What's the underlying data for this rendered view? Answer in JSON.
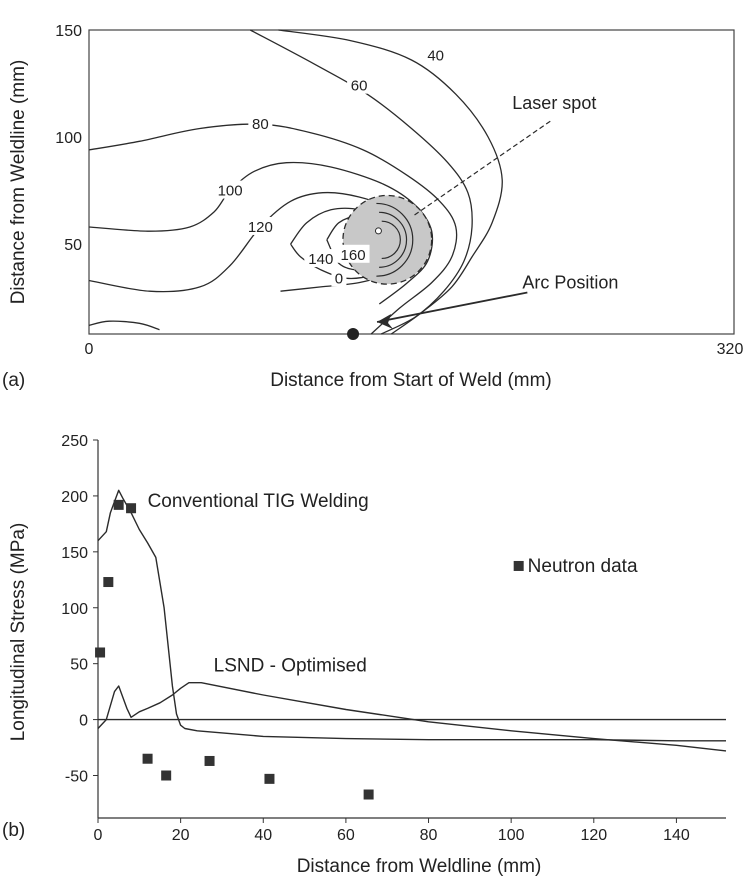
{
  "chart_data": [
    {
      "panel_label": "(a)",
      "type": "contour",
      "xlabel": "Distance from Start of Weld (mm)",
      "ylabel": "Distance from Weldline (mm)",
      "xlim": [
        0,
        320
      ],
      "ylim": [
        8,
        150
      ],
      "x_ticks": [
        "0",
        "320"
      ],
      "y_ticks": [
        {
          "value": 150,
          "label": "150"
        },
        {
          "value": 100,
          "label": "100"
        },
        {
          "value": 50,
          "label": "50"
        }
      ],
      "contours": [
        {
          "label": "40",
          "label_at": [
            172,
            138
          ],
          "points": [
            [
              94,
              150
            ],
            [
              130,
              145
            ],
            [
              160,
              136
            ],
            [
              182,
              120
            ],
            [
              198,
              100
            ],
            [
              205,
              80
            ],
            [
              200,
              60
            ],
            [
              190,
              44
            ],
            [
              180,
              30
            ],
            [
              165,
              18
            ],
            [
              150,
              8
            ]
          ]
        },
        {
          "label": "60",
          "label_at": [
            134,
            124
          ],
          "points": [
            [
              80,
              150
            ],
            [
              112,
              134
            ],
            [
              138,
              120
            ],
            [
              160,
              104
            ],
            [
              178,
              88
            ],
            [
              188,
              74
            ],
            [
              190,
              58
            ],
            [
              186,
              42
            ],
            [
              176,
              28
            ],
            [
              162,
              16
            ],
            [
              145,
              8
            ]
          ]
        },
        {
          "label": "80",
          "label_at": [
            85,
            106
          ],
          "points": [
            [
              0,
              94
            ],
            [
              25,
              98
            ],
            [
              55,
              104
            ],
            [
              85,
              106
            ],
            [
              110,
              102
            ],
            [
              136,
              94
            ],
            [
              158,
              82
            ],
            [
              174,
              70
            ],
            [
              182,
              58
            ],
            [
              180,
              44
            ],
            [
              170,
              32
            ],
            [
              154,
              20
            ],
            [
              140,
              8
            ]
          ]
        },
        {
          "label": "100",
          "label_at": [
            70,
            75
          ],
          "points": [
            [
              0,
              58
            ],
            [
              30,
              56
            ],
            [
              50,
              58
            ],
            [
              62,
              65
            ],
            [
              70,
              75
            ],
            [
              82,
              84
            ],
            [
              98,
              88
            ],
            [
              120,
              86
            ],
            [
              146,
              78
            ],
            [
              162,
              68
            ],
            [
              170,
              56
            ],
            [
              168,
              42
            ],
            [
              158,
              32
            ],
            [
              144,
              22
            ]
          ]
        },
        {
          "label": "120",
          "label_at": [
            85,
            58
          ],
          "points": [
            [
              0,
              33
            ],
            [
              30,
              28
            ],
            [
              55,
              30
            ],
            [
              70,
              40
            ],
            [
              85,
              58
            ],
            [
              100,
              70
            ],
            [
              116,
              74
            ],
            [
              134,
              72
            ],
            [
              150,
              66
            ],
            [
              160,
              56
            ],
            [
              158,
              44
            ],
            [
              148,
              36
            ],
            [
              134,
              32
            ],
            [
              115,
              30
            ],
            [
              95,
              28
            ]
          ]
        },
        {
          "label": "140",
          "label_at": [
            115,
            43
          ],
          "points": [
            [
              100,
              50
            ],
            [
              108,
              60
            ],
            [
              120,
              66
            ],
            [
              134,
              66
            ],
            [
              146,
              60
            ],
            [
              152,
              52
            ],
            [
              150,
              42
            ],
            [
              142,
              36
            ],
            [
              128,
              34
            ],
            [
              115,
              38
            ],
            [
              105,
              44
            ],
            [
              100,
              50
            ]
          ]
        },
        {
          "label": "160",
          "label_at": [
            131,
            45
          ],
          "points": [
            [
              118,
              52
            ],
            [
              124,
              60
            ],
            [
              134,
              63
            ],
            [
              144,
              58
            ],
            [
              148,
              50
            ],
            [
              144,
              42
            ],
            [
              134,
              38
            ],
            [
              124,
              41
            ],
            [
              118,
              52
            ]
          ]
        },
        {
          "label": "0",
          "label_at": [
            124,
            34
          ],
          "points": []
        }
      ],
      "baseline_loop": [
        [
          0,
          12
        ],
        [
          10,
          14
        ],
        [
          25,
          13
        ],
        [
          35,
          10
        ]
      ],
      "annotations": [
        {
          "text": "Laser spot",
          "at": [
            210,
            113
          ]
        },
        {
          "text": "Arc Position",
          "at": [
            215,
            33
          ]
        }
      ],
      "laser_spot": {
        "center": [
          148,
          52
        ],
        "radius_mm": 22
      },
      "arc_position": [
        131,
        8
      ]
    },
    {
      "panel_label": "(b)",
      "type": "line",
      "xlabel": "Distance from Weldline (mm)",
      "ylabel": "Longitudinal Stress (MPa)",
      "xlim": [
        0,
        152
      ],
      "ylim": [
        -88,
        250
      ],
      "x_ticks": [
        0,
        20,
        40,
        60,
        80,
        100,
        120,
        140
      ],
      "y_ticks": [
        -50,
        0,
        50,
        100,
        150,
        200,
        250
      ],
      "grid": false,
      "series": [
        {
          "name": "Conventional TIG Welding",
          "label_at": [
            12,
            190
          ],
          "x": [
            0,
            2,
            3,
            5,
            6,
            8,
            10,
            12,
            14,
            16,
            18,
            19,
            20,
            21,
            24,
            40,
            60,
            80,
            100,
            120,
            140,
            152
          ],
          "y": [
            160,
            168,
            185,
            205,
            198,
            185,
            170,
            158,
            145,
            100,
            30,
            5,
            -5,
            -8,
            -10,
            -15,
            -17,
            -18,
            -18,
            -18,
            -19,
            -19
          ]
        },
        {
          "name": "LSND - Optimised",
          "label_at": [
            28,
            43
          ],
          "x": [
            0,
            2,
            4,
            5,
            7,
            8,
            10,
            12,
            15,
            18,
            20,
            22,
            25,
            40,
            60,
            80,
            100,
            120,
            140,
            152
          ],
          "y": [
            -8,
            0,
            25,
            30,
            10,
            2,
            7,
            10,
            15,
            22,
            28,
            33,
            33,
            22,
            9,
            -2,
            -10,
            -17,
            -23,
            -28
          ]
        },
        {
          "name": "Neutron data",
          "label_at": [
            104,
            132
          ],
          "points": [
            [
              0.5,
              60
            ],
            [
              2.5,
              123
            ],
            [
              5,
              192
            ],
            [
              8,
              189
            ],
            [
              12,
              -35
            ],
            [
              16.5,
              -50
            ],
            [
              27,
              -37
            ],
            [
              41.5,
              -53
            ],
            [
              65.5,
              -67
            ]
          ]
        }
      ],
      "zero_line": 0
    }
  ],
  "style": {
    "line_color": "#2b2b2b",
    "spot_fill": "#c8c8c8",
    "marker_color": "#333333"
  }
}
